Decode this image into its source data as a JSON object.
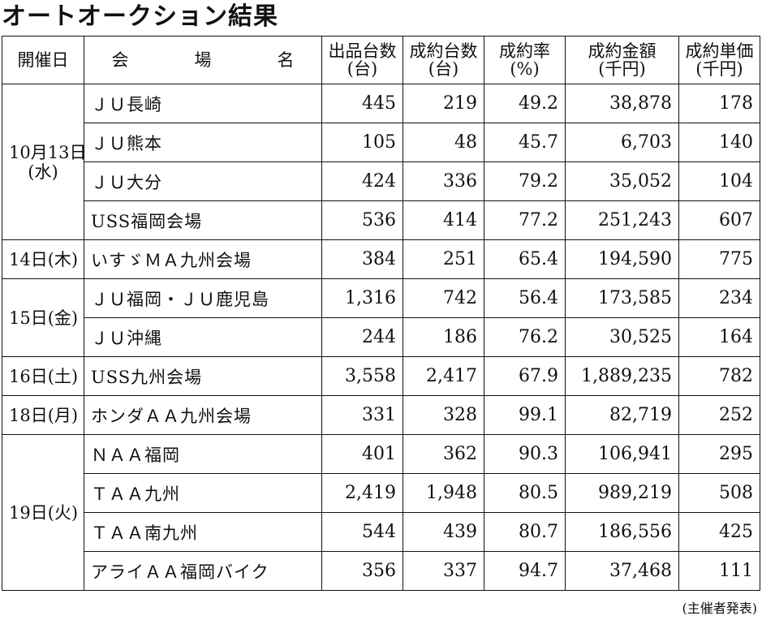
{
  "title": "オートオークション結果",
  "table": {
    "headers": {
      "date": "開催日",
      "venue": [
        "会",
        "場",
        "名"
      ],
      "listed": {
        "line1": "出品台数",
        "line2": "(台)"
      },
      "contracted": {
        "line1": "成約台数",
        "line2": "(台)"
      },
      "rate": {
        "line1": "成約率",
        "line2": "(%)"
      },
      "amount": {
        "line1": "成約金額",
        "line2": "(千円)"
      },
      "unit_price": {
        "line1": "成約単価",
        "line2": "(千円)"
      }
    },
    "groups": [
      {
        "date_line1": "10月13日",
        "date_line2": "(水)",
        "rows": [
          {
            "venue": "ＪＵ長崎",
            "listed": "445",
            "contracted": "219",
            "rate": "49.2",
            "amount": "38,878",
            "unit_price": "178"
          },
          {
            "venue": "ＪＵ熊本",
            "listed": "105",
            "contracted": "48",
            "rate": "45.7",
            "amount": "6,703",
            "unit_price": "140"
          },
          {
            "venue": "ＪＵ大分",
            "listed": "424",
            "contracted": "336",
            "rate": "79.2",
            "amount": "35,052",
            "unit_price": "104"
          },
          {
            "venue": "USS福岡会場",
            "listed": "536",
            "contracted": "414",
            "rate": "77.2",
            "amount": "251,243",
            "unit_price": "607"
          }
        ]
      },
      {
        "date_line1": "14日(木)",
        "date_line2": "",
        "rows": [
          {
            "venue": "いすゞＭＡ九州会場",
            "listed": "384",
            "contracted": "251",
            "rate": "65.4",
            "amount": "194,590",
            "unit_price": "775"
          }
        ]
      },
      {
        "date_line1": "15日(金)",
        "date_line2": "",
        "rows": [
          {
            "venue": "ＪＵ福岡・ＪＵ鹿児島",
            "listed": "1,316",
            "contracted": "742",
            "rate": "56.4",
            "amount": "173,585",
            "unit_price": "234"
          },
          {
            "venue": "ＪＵ沖縄",
            "listed": "244",
            "contracted": "186",
            "rate": "76.2",
            "amount": "30,525",
            "unit_price": "164"
          }
        ]
      },
      {
        "date_line1": "16日(土)",
        "date_line2": "",
        "rows": [
          {
            "venue": "USS九州会場",
            "listed": "3,558",
            "contracted": "2,417",
            "rate": "67.9",
            "amount": "1,889,235",
            "unit_price": "782"
          }
        ]
      },
      {
        "date_line1": "18日(月)",
        "date_line2": "",
        "rows": [
          {
            "venue": "ホンダＡＡ九州会場",
            "listed": "331",
            "contracted": "328",
            "rate": "99.1",
            "amount": "82,719",
            "unit_price": "252"
          }
        ]
      },
      {
        "date_line1": "19日(火)",
        "date_line2": "",
        "rows": [
          {
            "venue": "ＮＡＡ福岡",
            "listed": "401",
            "contracted": "362",
            "rate": "90.3",
            "amount": "106,941",
            "unit_price": "295"
          },
          {
            "venue": "ＴＡＡ九州",
            "listed": "2,419",
            "contracted": "1,948",
            "rate": "80.5",
            "amount": "989,219",
            "unit_price": "508"
          },
          {
            "venue": "ＴＡＡ南九州",
            "listed": "544",
            "contracted": "439",
            "rate": "80.7",
            "amount": "186,556",
            "unit_price": "425"
          },
          {
            "venue": "アライＡＡ福岡バイク",
            "listed": "356",
            "contracted": "337",
            "rate": "94.7",
            "amount": "37,468",
            "unit_price": "111"
          }
        ]
      }
    ]
  },
  "source": "(主催者発表)"
}
